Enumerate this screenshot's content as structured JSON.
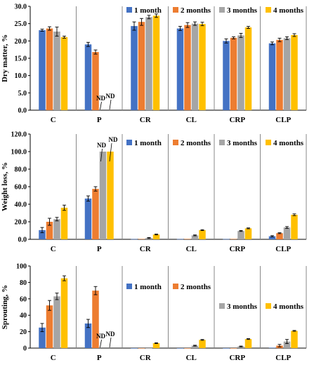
{
  "colors": {
    "1 month": "#4472C4",
    "2 months": "#ED7D31",
    "3 months": "#A5A5A5",
    "4 months": "#FFC000"
  },
  "chart_data": [
    {
      "type": "bar",
      "ylabel": "Dry matter, %",
      "ylim": [
        0,
        30
      ],
      "yticks": [
        "0.0",
        "5.0",
        "10.0",
        "15.0",
        "20.0",
        "25.0",
        "30.0"
      ],
      "ytick_values": [
        0,
        5,
        10,
        15,
        20,
        25,
        30
      ],
      "categories": [
        "C",
        "P",
        "CR",
        "CL",
        "CRP",
        "CLP"
      ],
      "legend_placement": "top, inside",
      "grid": false,
      "series": [
        {
          "name": "1 month",
          "values": [
            23.1,
            19.0,
            24.3,
            23.6,
            20.0,
            19.3
          ],
          "errors": [
            0.3,
            0.6,
            1.2,
            0.6,
            0.6,
            0.4
          ]
        },
        {
          "name": "2 months",
          "values": [
            23.6,
            16.8,
            25.5,
            24.6,
            20.9,
            20.3
          ],
          "errors": [
            0.5,
            0.6,
            1.0,
            0.7,
            0.3,
            0.5
          ]
        },
        {
          "name": "3 months",
          "values": [
            22.7,
            null,
            26.9,
            25.0,
            21.6,
            20.8
          ],
          "errors": [
            1.3,
            null,
            0.5,
            0.5,
            0.6,
            0.4
          ]
        },
        {
          "name": "4 months",
          "values": [
            21.1,
            null,
            27.3,
            24.9,
            23.9,
            21.7
          ],
          "errors": [
            0.3,
            null,
            0.5,
            0.5,
            0.3,
            0.4
          ]
        }
      ],
      "annotations": [
        {
          "category": "P",
          "series": "3 months",
          "text": "ND"
        },
        {
          "category": "P",
          "series": "4 months",
          "text": "ND"
        }
      ]
    },
    {
      "type": "bar",
      "ylabel": "Weight loss, %",
      "ylim": [
        0,
        120
      ],
      "yticks": [
        "0.0",
        "20.0",
        "40.0",
        "60.0",
        "80.0",
        "100.0",
        "120.0"
      ],
      "ytick_values": [
        0,
        20,
        40,
        60,
        80,
        100,
        120
      ],
      "categories": [
        "C",
        "P",
        "CR",
        "CL",
        "CRP",
        "CLP"
      ],
      "legend_placement": "top, inside",
      "grid": false,
      "series": [
        {
          "name": "1 month",
          "values": [
            10.5,
            46.5,
            0.3,
            0.3,
            0.3,
            3.5
          ],
          "errors": [
            3,
            3,
            0,
            0,
            0,
            0.7
          ]
        },
        {
          "name": "2 months",
          "values": [
            20.0,
            57.5,
            0.5,
            0.5,
            0.5,
            7.0
          ],
          "errors": [
            4,
            2.5,
            0,
            0,
            0,
            0.5
          ]
        },
        {
          "name": "3 months",
          "values": [
            23.0,
            100.0,
            1.5,
            4.5,
            9.5,
            13.5
          ],
          "errors": [
            2,
            0,
            0.5,
            0.5,
            0.5,
            1
          ]
        },
        {
          "name": "4 months",
          "values": [
            36.0,
            100.0,
            5.5,
            10.5,
            12.5,
            28.0
          ],
          "errors": [
            3,
            0,
            0.5,
            0.5,
            0.5,
            1
          ]
        }
      ],
      "annotations": [
        {
          "category": "P",
          "series": "3 months",
          "text": "ND"
        },
        {
          "category": "P",
          "series": "4 months",
          "text": "ND"
        }
      ]
    },
    {
      "type": "bar",
      "ylabel": "Sprouting, %",
      "ylim": [
        0,
        100
      ],
      "yticks": [
        "0",
        "20",
        "40",
        "60",
        "80",
        "100"
      ],
      "ytick_values": [
        0,
        20,
        40,
        60,
        80,
        100
      ],
      "categories": [
        "C",
        "P",
        "CR",
        "CL",
        "CRP",
        "CLP"
      ],
      "legend_placement": "inside, stacked right of P",
      "grid": false,
      "series": [
        {
          "name": "1 month",
          "values": [
            25,
            30,
            0,
            0,
            0,
            0.5
          ],
          "errors": [
            5,
            5,
            0,
            0,
            0,
            0
          ]
        },
        {
          "name": "2 months",
          "values": [
            52,
            70,
            0,
            0,
            0,
            3
          ],
          "errors": [
            6,
            5,
            0,
            0,
            0,
            1.5
          ]
        },
        {
          "name": "3 months",
          "values": [
            63,
            null,
            0,
            3,
            2,
            8
          ],
          "errors": [
            4,
            null,
            0,
            0.5,
            0.5,
            2.5
          ]
        },
        {
          "name": "4 months",
          "values": [
            85,
            null,
            6,
            10,
            11,
            21
          ],
          "errors": [
            3,
            null,
            0.5,
            0.5,
            0.5,
            0.5
          ]
        }
      ],
      "annotations": [
        {
          "category": "P",
          "series": "3 months",
          "text": "ND"
        },
        {
          "category": "P",
          "series": "4 months",
          "text": "ND"
        }
      ]
    }
  ]
}
